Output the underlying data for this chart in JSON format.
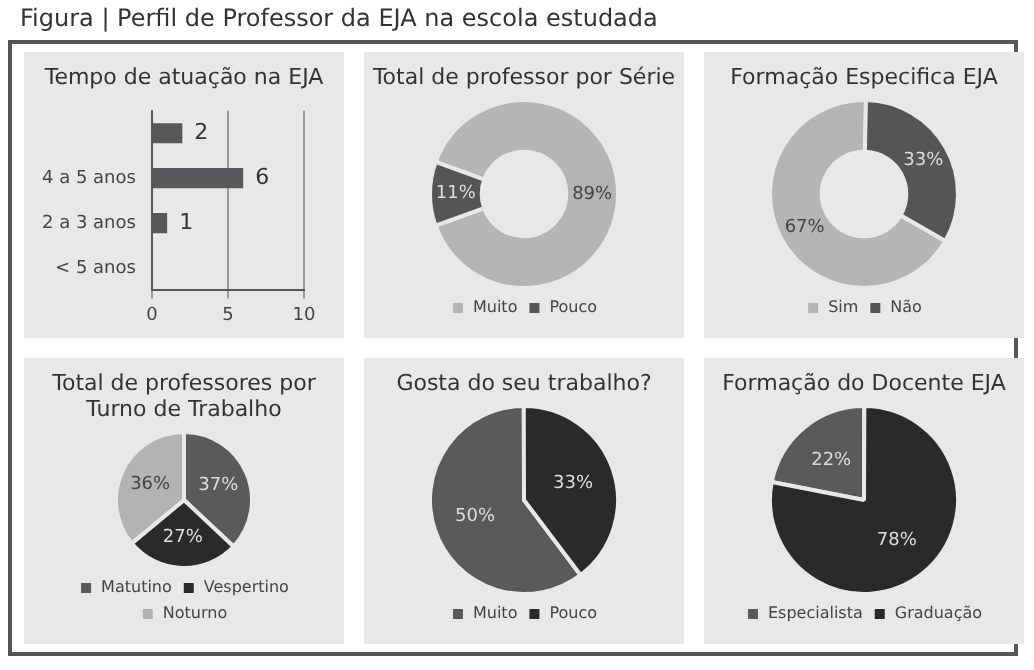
{
  "chart_data": [
    {
      "type": "other",
      "title": "Figura | Perfil de Professor da EJA na escola estudada"
    },
    {
      "type": "bar",
      "title": "Tempo de atuação na EJA",
      "orientation": "horizontal",
      "categories": [
        null,
        "4 a 5 anos",
        "2 a 3 anos",
        "< 5 anos"
      ],
      "values": [
        2,
        6,
        1,
        null
      ],
      "color": "#58585a",
      "xlim": [
        0,
        10
      ],
      "xticks": [
        0,
        5,
        10
      ],
      "grid": "x",
      "data_labels": true
    },
    {
      "type": "donut",
      "title": "Total de professor por Série",
      "categories": [
        "Muito",
        "Pouco"
      ],
      "values": [
        89,
        11
      ],
      "colors": [
        "#b5b5b5",
        "#555557"
      ],
      "value_labels": [
        "89%",
        "11%"
      ],
      "legend": "bottom"
    },
    {
      "type": "donut",
      "title": "Formação Especifica EJA",
      "categories": [
        "Sim",
        "Não"
      ],
      "values": [
        67,
        33
      ],
      "colors": [
        "#b5b5b5",
        "#555557"
      ],
      "value_labels": [
        "67%",
        "33%"
      ],
      "legend": "bottom"
    },
    {
      "type": "pie",
      "title": "Total de professores por Turno de Trabalho",
      "categories": [
        "Matutino",
        "Vespertino",
        "Noturno"
      ],
      "values": [
        37,
        27,
        36
      ],
      "colors": [
        "#5a5a5c",
        "#2a2a2c",
        "#b3b3b3"
      ],
      "value_labels": [
        "37%",
        "27%",
        "36%"
      ],
      "legend": "bottom"
    },
    {
      "type": "pie",
      "title": "Gosta do seu trabalho?",
      "categories": [
        "Muito",
        "Pouco"
      ],
      "values": [
        50,
        33
      ],
      "colors": [
        "#5a5a5c",
        "#2a2a2c"
      ],
      "value_labels": [
        "50%",
        "33%"
      ],
      "legend": "bottom"
    },
    {
      "type": "pie",
      "title": "Formação do Docente EJA",
      "categories": [
        "Especialista",
        "Graduação"
      ],
      "values": [
        22,
        78
      ],
      "colors": [
        "#5a5a5c",
        "#2a2a2c"
      ],
      "value_labels": [
        "22%",
        "78%"
      ],
      "legend": "bottom"
    }
  ]
}
